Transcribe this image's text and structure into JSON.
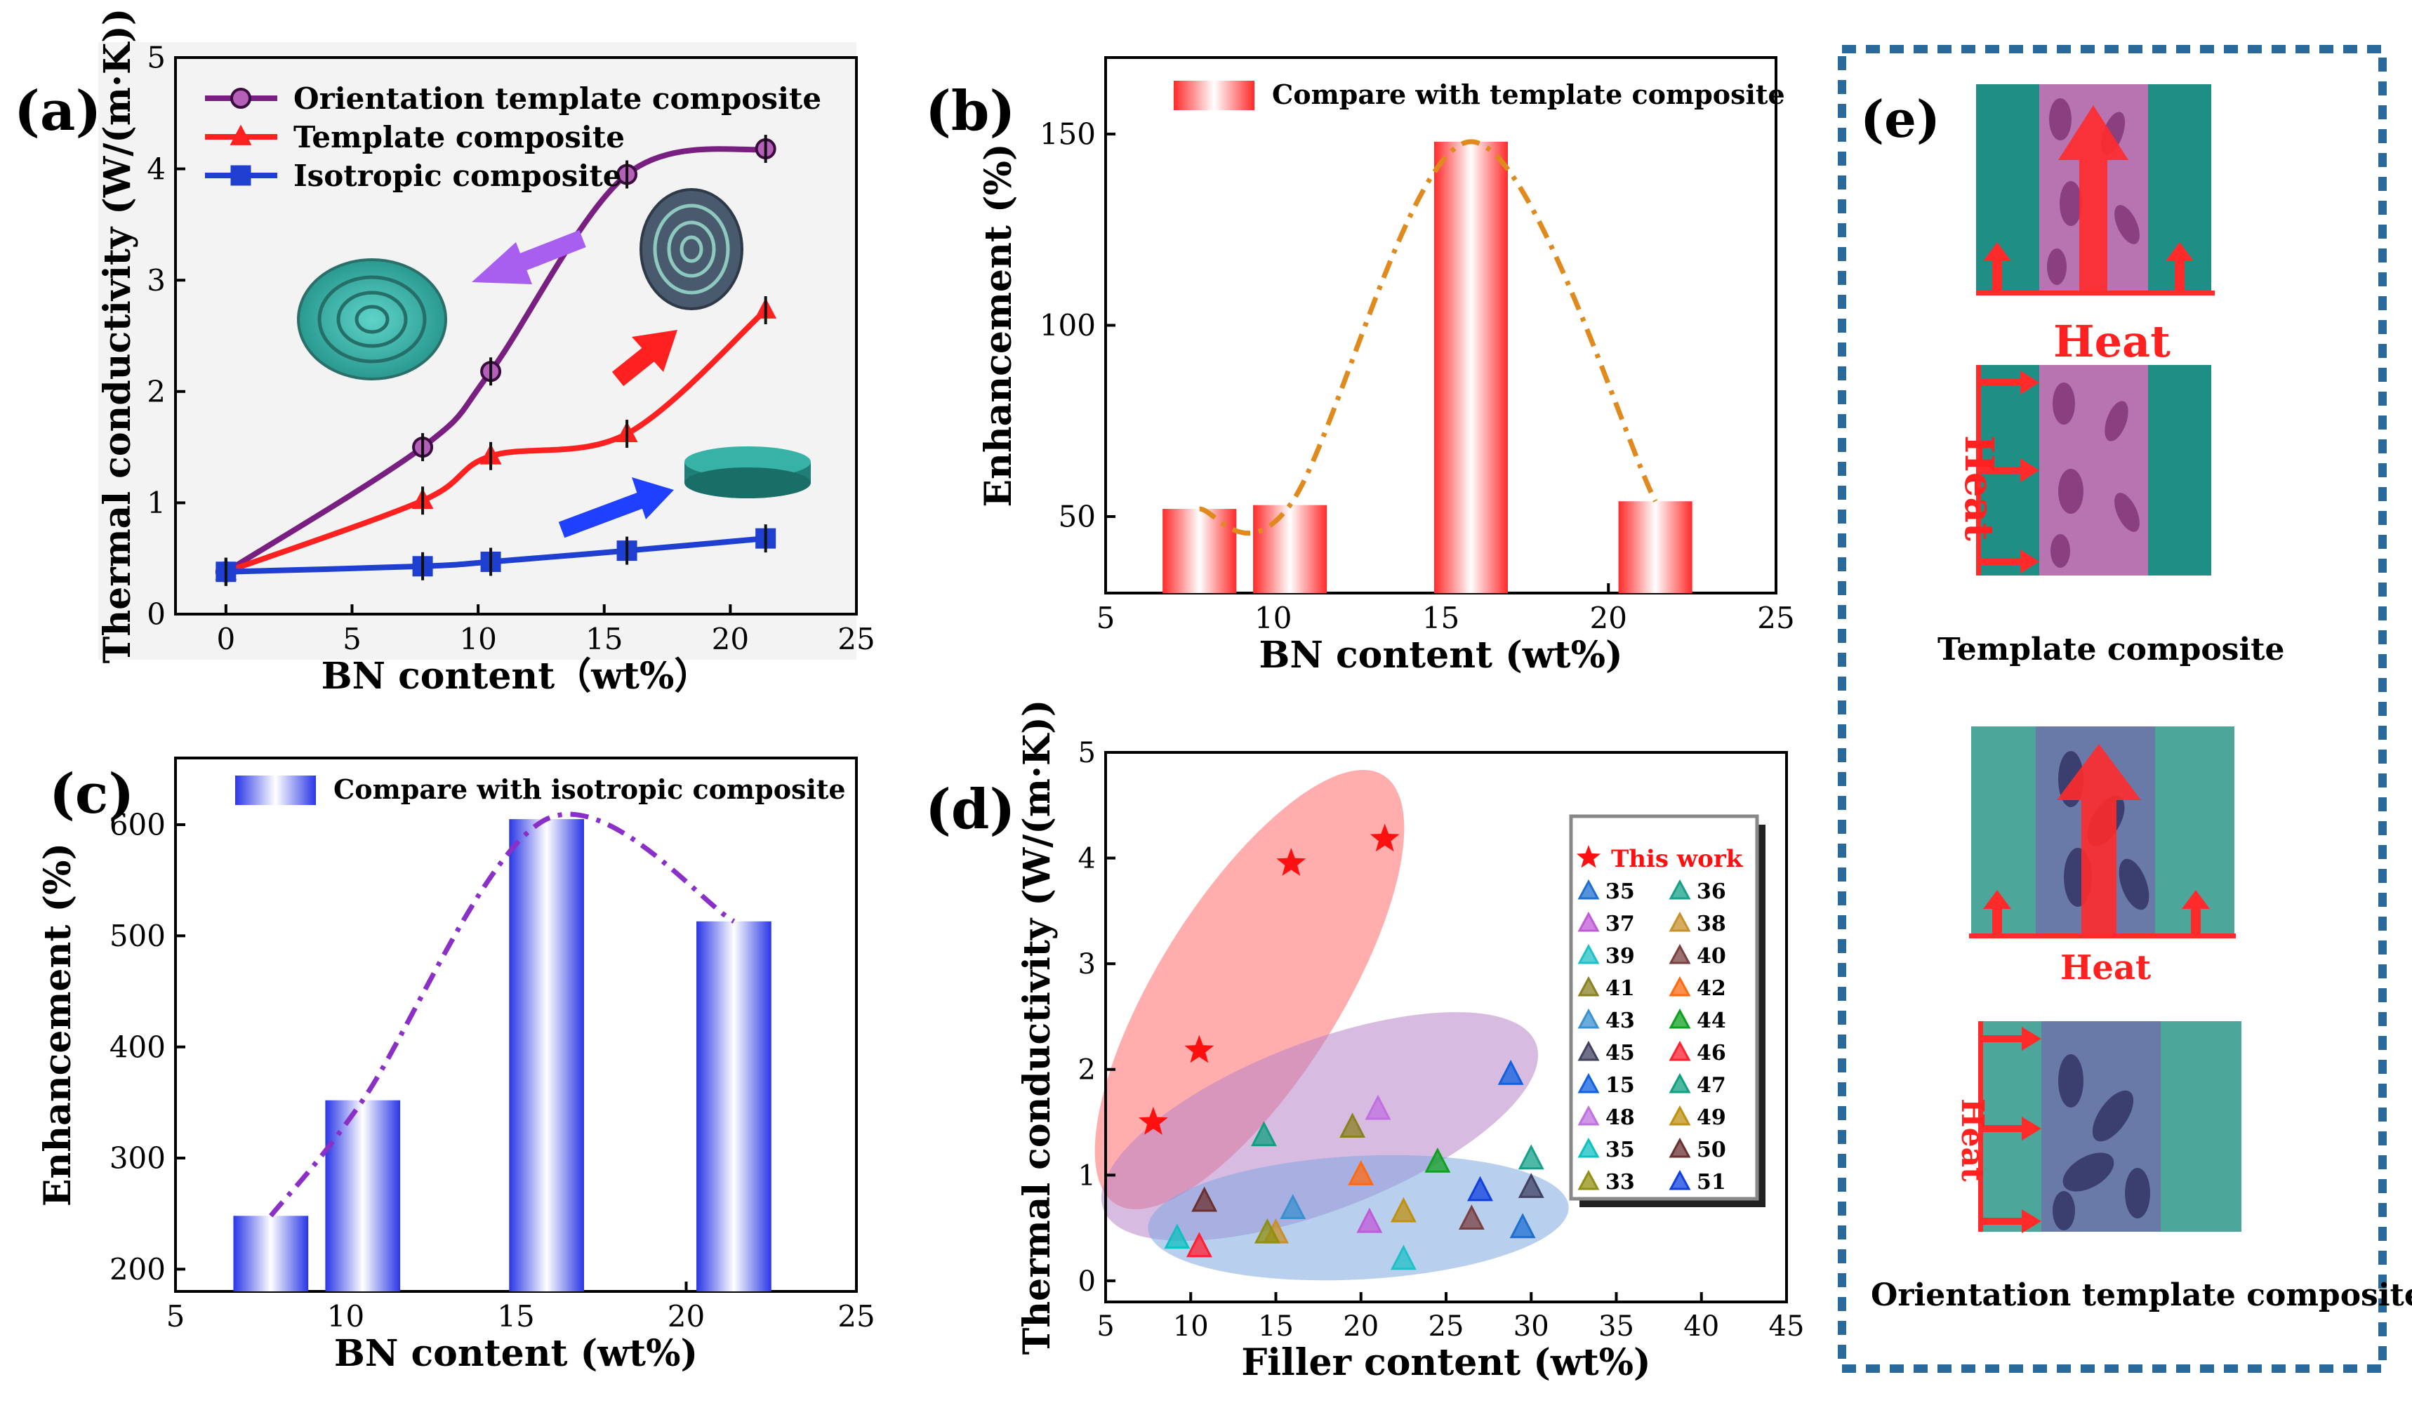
{
  "colors": {
    "purple": "#7a1f82",
    "red": "#ff2020",
    "blue": "#1f3fd0",
    "orange": "#e08a1e",
    "violet": "#8a2fc8",
    "teal": "#1f8f88",
    "border_blue": "#2a6a9a"
  },
  "chart_data": [
    {
      "panel_label": "(a)",
      "type": "line",
      "xlabel": "BN content（wt%）",
      "ylabel": "Thermal conductivity (W/(m·K))",
      "xlim": [
        -2,
        25
      ],
      "ylim": [
        0,
        5
      ],
      "xticks": [
        "0",
        "5",
        "10",
        "15",
        "20",
        "25"
      ],
      "yticks": [
        "0",
        "1",
        "2",
        "3",
        "4",
        "5"
      ],
      "legend_position": "top-left",
      "series": [
        {
          "name": "Orientation template composite",
          "marker": "circle",
          "x": [
            0,
            7.8,
            10.5,
            15.9,
            21.4
          ],
          "y": [
            0.38,
            1.5,
            2.18,
            3.95,
            4.18
          ]
        },
        {
          "name": "Template composite",
          "marker": "triangle",
          "x": [
            0,
            7.8,
            10.5,
            15.9,
            21.4
          ],
          "y": [
            0.38,
            1.02,
            1.42,
            1.62,
            2.73
          ]
        },
        {
          "name": "Isotropic composite",
          "marker": "square",
          "x": [
            0,
            7.8,
            10.5,
            15.9,
            21.4
          ],
          "y": [
            0.38,
            0.43,
            0.47,
            0.57,
            0.68
          ]
        }
      ]
    },
    {
      "panel_label": "(b)",
      "type": "bar",
      "xlabel": "BN content (wt%)",
      "ylabel": "Enhancement (%)",
      "xlim": [
        5,
        25
      ],
      "ylim": [
        30,
        170
      ],
      "xticks": [
        "5",
        "10",
        "15",
        "20",
        "25"
      ],
      "yticks": [
        "50",
        "100",
        "150"
      ],
      "legend": "Compare with template composite",
      "legend_position": "top-center",
      "x": [
        7.8,
        10.5,
        15.9,
        21.4
      ],
      "values": [
        52,
        53,
        148,
        54
      ]
    },
    {
      "panel_label": "(c)",
      "type": "bar",
      "xlabel": "BN content (wt%)",
      "ylabel": "Enhancement (%)",
      "xlim": [
        5,
        25
      ],
      "ylim": [
        180,
        660
      ],
      "xticks": [
        "5",
        "10",
        "15",
        "20",
        "25"
      ],
      "yticks": [
        "200",
        "300",
        "400",
        "500",
        "600"
      ],
      "legend": "Compare with  isotropic composite",
      "legend_position": "top-left",
      "x": [
        7.8,
        10.5,
        15.9,
        21.4
      ],
      "values": [
        248,
        352,
        605,
        513
      ]
    },
    {
      "panel_label": "(d)",
      "type": "scatter",
      "xlabel": "Filler content (wt%)",
      "ylabel": "Thermal conductivity (W/(m·K))",
      "xlim": [
        5,
        45
      ],
      "ylim": [
        -0.2,
        5
      ],
      "xticks": [
        "5",
        "10",
        "15",
        "20",
        "25",
        "30",
        "35",
        "40",
        "45"
      ],
      "yticks": [
        "0",
        "1",
        "2",
        "3",
        "4",
        "5"
      ],
      "legend_position": "right",
      "this_work": {
        "name": "This work",
        "x": [
          7.8,
          10.5,
          15.9,
          21.4
        ],
        "y": [
          1.5,
          2.18,
          3.95,
          4.18
        ]
      },
      "references": [
        {
          "name": "35",
          "x": 29.5,
          "y": 0.5
        },
        {
          "name": "36",
          "x": 30,
          "y": 1.15
        },
        {
          "name": "37",
          "x": 20.5,
          "y": 0.55
        },
        {
          "name": "38",
          "x": 15,
          "y": 0.45
        },
        {
          "name": "39",
          "x": 22.5,
          "y": 0.2
        },
        {
          "name": "40",
          "x": 26.5,
          "y": 0.58
        },
        {
          "name": "41",
          "x": 19.5,
          "y": 1.45
        },
        {
          "name": "42",
          "x": 20,
          "y": 1.0
        },
        {
          "name": "43",
          "x": 16,
          "y": 0.68
        },
        {
          "name": "44",
          "x": 24.5,
          "y": 1.12
        },
        {
          "name": "45",
          "x": 30,
          "y": 0.88
        },
        {
          "name": "46",
          "x": 10.5,
          "y": 0.32
        },
        {
          "name": "15",
          "x": 28.8,
          "y": 1.95
        },
        {
          "name": "47",
          "x": 14.3,
          "y": 1.37
        },
        {
          "name": "48",
          "x": 21,
          "y": 1.62
        },
        {
          "name": "49",
          "x": 22.5,
          "y": 0.65
        },
        {
          "name": "35",
          "x": 9.2,
          "y": 0.4
        },
        {
          "name": "50",
          "x": 10.8,
          "y": 0.75
        },
        {
          "name": "33",
          "x": 14.5,
          "y": 0.45
        },
        {
          "name": "51",
          "x": 27,
          "y": 0.85
        }
      ]
    }
  ],
  "panel_e": {
    "label": "(e)",
    "heat_label_1": "Heat",
    "heat_label_2": "Heat",
    "caption_1": "Template composite",
    "heat_label_3": "Heat",
    "heat_label_4": "Heat",
    "caption_2": "Orientation template composite"
  }
}
